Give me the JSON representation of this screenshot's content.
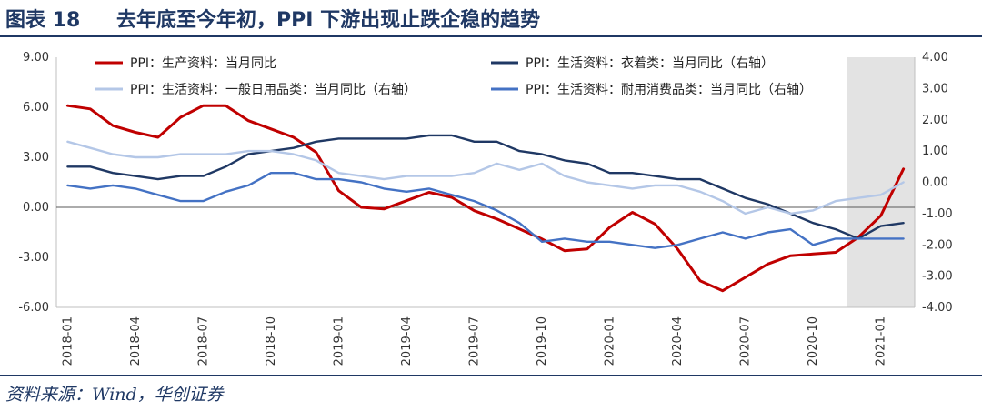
{
  "figure": {
    "number": "图表 18",
    "title": "去年底至今年初，PPI 下游出现止跌企稳的趋势",
    "source": "资料来源：Wind，华创证券"
  },
  "colors": {
    "ppi_consumer": "#c00000",
    "ppi_clothing": "#1f3864",
    "ppi_daily": "#b4c7e7",
    "ppi_durable": "#4472c4",
    "shade": "#d9d9d9",
    "title": "#1f3864"
  },
  "chart_data": {
    "type": "line",
    "title": "",
    "xlabel": "",
    "ylabel": "",
    "x_tick_labels": [
      "2018-01",
      "2018-04",
      "2018-07",
      "2018-10",
      "2019-01",
      "2019-04",
      "2019-07",
      "2019-10",
      "2020-01",
      "2020-04",
      "2020-07",
      "2020-10",
      "2021-01"
    ],
    "x": [
      "2018-01",
      "2018-02",
      "2018-03",
      "2018-04",
      "2018-05",
      "2018-06",
      "2018-07",
      "2018-08",
      "2018-09",
      "2018-10",
      "2018-11",
      "2018-12",
      "2019-01",
      "2019-02",
      "2019-03",
      "2019-04",
      "2019-05",
      "2019-06",
      "2019-07",
      "2019-08",
      "2019-09",
      "2019-10",
      "2019-11",
      "2019-12",
      "2020-01",
      "2020-02",
      "2020-03",
      "2020-04",
      "2020-05",
      "2020-06",
      "2020-07",
      "2020-08",
      "2020-09",
      "2020-10",
      "2020-11",
      "2020-12",
      "2021-01",
      "2021-02"
    ],
    "y_left": {
      "lim": [
        -6,
        9
      ],
      "ticks": [
        "9.00",
        "6.00",
        "3.00",
        "0.00",
        "-3.00",
        "-6.00"
      ]
    },
    "y_right": {
      "lim": [
        -4,
        4
      ],
      "ticks": [
        "4.00",
        "3.00",
        "2.00",
        "1.00",
        "0.00",
        "-1.00",
        "-2.00",
        "-3.00",
        "-4.00"
      ]
    },
    "shaded_region": [
      "2020-12",
      "2021-02"
    ],
    "zero_line": true,
    "grid": false,
    "legend_position": "top",
    "series": [
      {
        "name": "PPI：生产资料：当月同比",
        "axis": "left",
        "color": "#c00000",
        "values": [
          6.1,
          5.9,
          4.9,
          4.5,
          4.2,
          5.4,
          6.1,
          6.1,
          5.2,
          4.7,
          4.2,
          3.3,
          1.0,
          0.0,
          -0.1,
          0.4,
          0.9,
          0.6,
          -0.2,
          -0.7,
          -1.3,
          -1.9,
          -2.6,
          -2.5,
          -1.2,
          -0.3,
          -1.0,
          -2.5,
          -4.4,
          -5.0,
          -4.2,
          -3.4,
          -2.9,
          -2.8,
          -2.7,
          -1.8,
          -0.5,
          2.3
        ]
      },
      {
        "name": "PPI：生活资料：衣着类：当月同比（右轴）",
        "axis": "right",
        "color": "#1f3864",
        "values": [
          0.5,
          0.5,
          0.3,
          0.2,
          0.1,
          0.2,
          0.2,
          0.5,
          0.9,
          1.0,
          1.1,
          1.3,
          1.4,
          1.4,
          1.4,
          1.4,
          1.5,
          1.5,
          1.3,
          1.3,
          1.0,
          0.9,
          0.7,
          0.6,
          0.3,
          0.3,
          0.2,
          0.1,
          0.1,
          -0.2,
          -0.5,
          -0.7,
          -1.0,
          -1.3,
          -1.5,
          -1.8,
          -1.4,
          -1.3
        ]
      },
      {
        "name": "PPI：生活资料：一般日用品类：当月同比（右轴）",
        "axis": "right",
        "color": "#b4c7e7",
        "values": [
          1.3,
          1.1,
          0.9,
          0.8,
          0.8,
          0.9,
          0.9,
          0.9,
          1.0,
          1.0,
          0.9,
          0.7,
          0.3,
          0.2,
          0.1,
          0.2,
          0.2,
          0.2,
          0.3,
          0.6,
          0.4,
          0.6,
          0.2,
          0.0,
          -0.1,
          -0.2,
          -0.1,
          -0.1,
          -0.3,
          -0.6,
          -1.0,
          -0.8,
          -1.0,
          -0.9,
          -0.6,
          -0.5,
          -0.4,
          0.0
        ]
      },
      {
        "name": "PPI：生活资料：耐用消费品类：当月同比（右轴）",
        "axis": "right",
        "color": "#4472c4",
        "values": [
          -0.1,
          -0.2,
          -0.1,
          -0.2,
          -0.4,
          -0.6,
          -0.6,
          -0.3,
          -0.1,
          0.3,
          0.3,
          0.1,
          0.1,
          0.0,
          -0.2,
          -0.3,
          -0.2,
          -0.4,
          -0.6,
          -0.9,
          -1.3,
          -1.9,
          -1.8,
          -1.9,
          -1.9,
          -2.0,
          -2.1,
          -2.0,
          -1.8,
          -1.6,
          -1.8,
          -1.6,
          -1.5,
          -2.0,
          -1.8,
          -1.8,
          -1.8,
          -1.8
        ]
      }
    ]
  }
}
